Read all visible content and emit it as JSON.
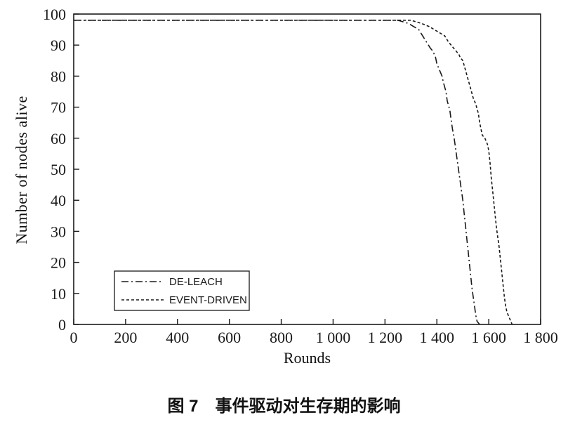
{
  "caption": "图 7　事件驱动对生存期的影响",
  "chart_data": {
    "type": "line",
    "title": "",
    "xlabel": "Rounds",
    "ylabel": "Number of nodes alive",
    "xlim": [
      0,
      1800
    ],
    "ylim": [
      0,
      100
    ],
    "grid": false,
    "legend_position": "lower-left",
    "color": "#1a1a1a",
    "x_ticks": [
      0,
      200,
      400,
      600,
      800,
      1000,
      1200,
      1400,
      1600,
      1800
    ],
    "x_tick_labels": [
      "0",
      "200",
      "400",
      "600",
      "800",
      "1 000",
      "1 200",
      "1 400",
      "1 600",
      "1 800"
    ],
    "y_ticks": [
      0,
      10,
      20,
      30,
      40,
      50,
      60,
      70,
      80,
      90,
      100
    ],
    "series": [
      {
        "name": "DE-LEACH",
        "dash": "dash-dot",
        "points": [
          [
            0,
            98
          ],
          [
            1250,
            98
          ],
          [
            1290,
            97
          ],
          [
            1310,
            96
          ],
          [
            1330,
            95
          ],
          [
            1345,
            93
          ],
          [
            1360,
            91
          ],
          [
            1375,
            89
          ],
          [
            1385,
            88
          ],
          [
            1395,
            86
          ],
          [
            1400,
            84
          ],
          [
            1410,
            82
          ],
          [
            1420,
            80
          ],
          [
            1425,
            78
          ],
          [
            1435,
            75
          ],
          [
            1440,
            72
          ],
          [
            1450,
            69
          ],
          [
            1455,
            66
          ],
          [
            1460,
            63
          ],
          [
            1465,
            61
          ],
          [
            1470,
            58
          ],
          [
            1475,
            55
          ],
          [
            1480,
            52
          ],
          [
            1485,
            49
          ],
          [
            1490,
            46
          ],
          [
            1495,
            43
          ],
          [
            1500,
            40
          ],
          [
            1505,
            36
          ],
          [
            1510,
            32
          ],
          [
            1515,
            28
          ],
          [
            1520,
            24
          ],
          [
            1525,
            20
          ],
          [
            1530,
            16
          ],
          [
            1535,
            12
          ],
          [
            1540,
            9
          ],
          [
            1545,
            6
          ],
          [
            1550,
            3
          ],
          [
            1555,
            1
          ],
          [
            1565,
            0
          ]
        ]
      },
      {
        "name": "EVENT-DRIVEN",
        "dash": "dashed",
        "points": [
          [
            0,
            98
          ],
          [
            1300,
            98
          ],
          [
            1340,
            97
          ],
          [
            1370,
            96
          ],
          [
            1390,
            95
          ],
          [
            1410,
            94
          ],
          [
            1430,
            93
          ],
          [
            1445,
            91
          ],
          [
            1455,
            90
          ],
          [
            1465,
            89
          ],
          [
            1475,
            88
          ],
          [
            1485,
            87
          ],
          [
            1490,
            86
          ],
          [
            1500,
            85
          ],
          [
            1510,
            82
          ],
          [
            1520,
            79
          ],
          [
            1530,
            76
          ],
          [
            1540,
            73
          ],
          [
            1550,
            71
          ],
          [
            1560,
            68
          ],
          [
            1565,
            65
          ],
          [
            1570,
            63
          ],
          [
            1575,
            61
          ],
          [
            1585,
            60
          ],
          [
            1595,
            58
          ],
          [
            1600,
            56
          ],
          [
            1605,
            52
          ],
          [
            1610,
            47
          ],
          [
            1615,
            43
          ],
          [
            1620,
            39
          ],
          [
            1625,
            35
          ],
          [
            1630,
            31
          ],
          [
            1635,
            28
          ],
          [
            1640,
            25
          ],
          [
            1645,
            21
          ],
          [
            1650,
            17
          ],
          [
            1655,
            13
          ],
          [
            1660,
            9
          ],
          [
            1665,
            6
          ],
          [
            1670,
            4
          ],
          [
            1680,
            2
          ],
          [
            1690,
            0
          ]
        ]
      }
    ]
  }
}
